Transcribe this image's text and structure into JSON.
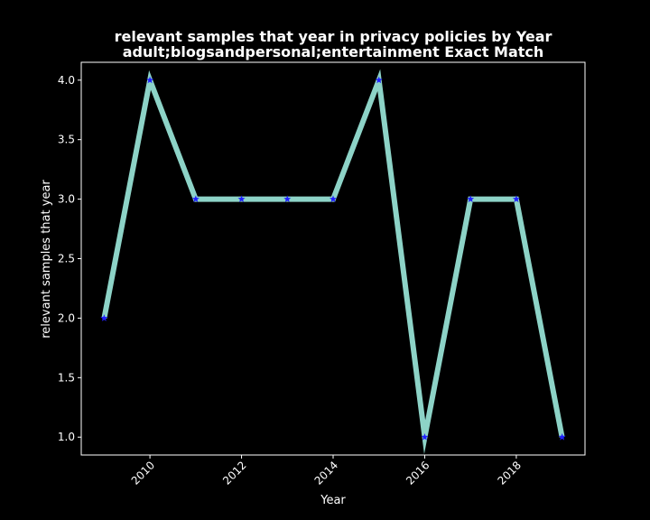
{
  "chart_data": {
    "type": "line",
    "title": "relevant samples that year in privacy policies by Year",
    "subtitle": "adult;blogsandpersonal;entertainment Exact Match",
    "xlabel": "Year",
    "ylabel": "relevant samples that year",
    "x": [
      2009,
      2010,
      2011,
      2012,
      2013,
      2014,
      2015,
      2016,
      2017,
      2018,
      2019
    ],
    "series": [
      {
        "values": [
          2,
          4,
          3,
          3,
          3,
          3,
          4,
          1,
          3,
          3,
          1
        ]
      }
    ],
    "xticks": [
      "2010",
      "2012",
      "2014",
      "2016",
      "2018"
    ],
    "yticks": [
      "1.0",
      "1.5",
      "2.0",
      "2.5",
      "3.0",
      "3.5",
      "4.0"
    ],
    "xlim": [
      2008.5,
      2019.5
    ],
    "ylim": [
      0.85,
      4.15
    ],
    "grid": false,
    "colors": {
      "background": "#000000",
      "line": "#8dd3c7",
      "marker": "#1f1fff",
      "axis": "#ffffff"
    },
    "marker": "star"
  }
}
